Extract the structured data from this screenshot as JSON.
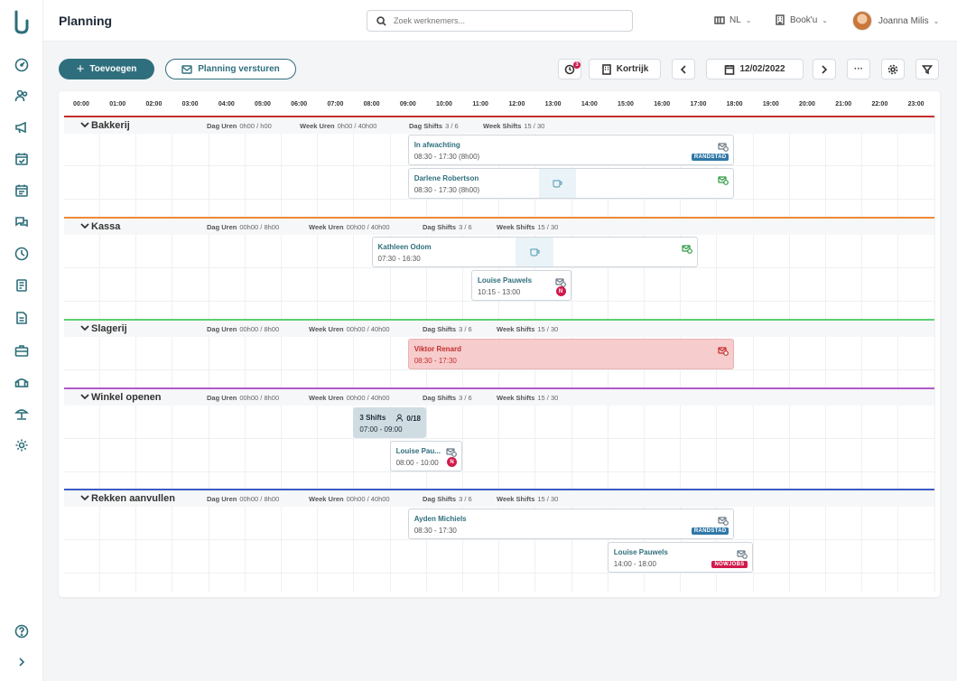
{
  "app": {
    "title": "Planning"
  },
  "search": {
    "placeholder": "Zoek werknemers..."
  },
  "header": {
    "language": "NL",
    "company": "Book'u",
    "user": "Joanna Milis"
  },
  "toolbar": {
    "add_label": "Toevoegen",
    "send_label": "Planning versturen",
    "notification_count": "3",
    "location": "Kortrijk",
    "date": "12/02/2022",
    "more_label": "···"
  },
  "hours": [
    "00:00",
    "01:00",
    "02:00",
    "03:00",
    "04:00",
    "05:00",
    "06:00",
    "07:00",
    "08:00",
    "09:00",
    "10:00",
    "11:00",
    "12:00",
    "13:00",
    "14:00",
    "15:00",
    "16:00",
    "17:00",
    "18:00",
    "19:00",
    "20:00",
    "21:00",
    "22:00",
    "23:00"
  ],
  "stat_labels": {
    "dag_uren": "Dag Uren",
    "week_uren": "Week Uren",
    "dag_shifts": "Dag Shifts",
    "week_shifts": "Week Shifts"
  },
  "departments": [
    {
      "name": "Bakkerij",
      "color": "#c62d2d",
      "dag_uren": "0h00 / h00",
      "week_uren": "0h00 / 40h00",
      "dag_shifts": "3 / 6",
      "week_shifts": "15 / 30",
      "shifts": [
        {
          "name": "In afwachting",
          "time": "08:30 - 17:30 (8h00)",
          "tag": "RANDSTAD",
          "tag_color": "#2f78a8",
          "icon_color": "#6a7a86"
        },
        {
          "name": "Darlene Robertson",
          "time": "08:30 - 17:30 (8h00)",
          "icon_color": "#2e9a44"
        }
      ]
    },
    {
      "name": "Kassa",
      "color": "#ef8a3a",
      "dag_uren": "00h00 / 8h00",
      "week_uren": "00h00 / 40h00",
      "dag_shifts": "3 / 6",
      "week_shifts": "15 / 30",
      "shifts": [
        {
          "name": "Kathleen Odom",
          "time": "07:30 - 16:30",
          "icon_color": "#2e9a44"
        },
        {
          "name": "Louise Pauwels",
          "time": "10:15 - 13:00",
          "badge": "N",
          "icon_color": "#6a7a86"
        }
      ]
    },
    {
      "name": "Slagerij",
      "color": "#5fcf72",
      "dag_uren": "00h00 / 8h00",
      "week_uren": "00h00 / 40h00",
      "dag_shifts": "3 / 6",
      "week_shifts": "15 / 30",
      "shifts": [
        {
          "name": "Viktor Renard",
          "time": "08:30 - 17:30",
          "icon_color": "#c62d2d"
        }
      ]
    },
    {
      "name": "Winkel openen",
      "color": "#b05ac9",
      "dag_uren": "00h00 / 8h00",
      "week_uren": "00h00 / 40h00",
      "dag_shifts": "3 / 6",
      "week_shifts": "15 / 30",
      "shifts": [
        {
          "name": "3 Shifts",
          "count": "0/18",
          "time": "07:00 - 09:00"
        },
        {
          "name": "Louise Pau...",
          "time": "08:00 - 10:00",
          "badge": "N",
          "icon_color": "#6a7a86"
        }
      ]
    },
    {
      "name": "Rekken aanvullen",
      "color": "#3d5bc4",
      "dag_uren": "00h00 / 8h00",
      "week_uren": "00h00 / 40h00",
      "dag_shifts": "3 / 6",
      "week_shifts": "15 / 30",
      "shifts": [
        {
          "name": "Ayden Michiels",
          "time": "08:30 - 17:30",
          "tag": "RANDSTAD",
          "tag_color": "#2f78a8",
          "icon_color": "#6a7a86"
        },
        {
          "name": "Louise Pauwels",
          "time": "14:00 - 18:00",
          "tag": "NOWJOBS",
          "tag_color": "#d11a4c",
          "icon_color": "#6a7a86"
        }
      ]
    }
  ],
  "sidebar_icons": [
    "dashboard-icon",
    "users-icon",
    "megaphone-icon",
    "calendar-check-icon",
    "calendar-icon",
    "chat-icon",
    "clock-icon",
    "book-icon",
    "document-icon",
    "briefcase-icon",
    "headset-icon",
    "beach-icon",
    "settings-icon",
    "help-icon",
    "expand-icon"
  ]
}
